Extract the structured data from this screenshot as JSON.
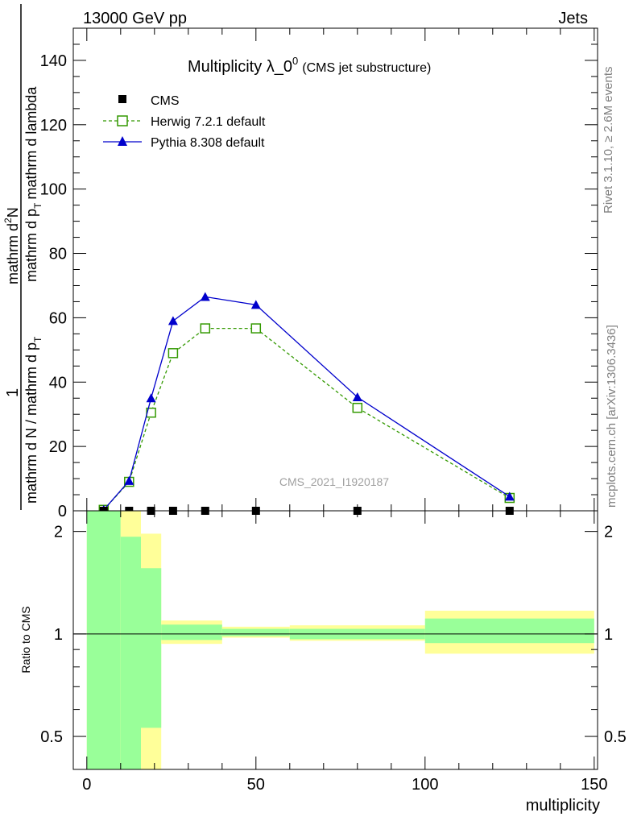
{
  "header": {
    "energy_label": "13000 GeV pp",
    "process_label": "Jets"
  },
  "side_labels": {
    "rivet": "Rivet 3.1.10, ≥ 2.6M events",
    "mcplots": "mcplots.cern.ch [arXiv:1306.3436]"
  },
  "chart_data": [
    {
      "type": "line",
      "title_main": "Multiplicity λ_0",
      "title_sup": "0",
      "title_sub": "(CMS jet substructure)",
      "watermark": "CMS_2021_I1920187",
      "ylabel_parts": {
        "numerator": "mathrm d",
        "numerator_sup": "2",
        "numerator_n": "N",
        "frac_one": "1",
        "denominator": "mathrm d N / mathrm d p",
        "denominator_sub": "T",
        "denominator_tail": "mathrm d p",
        "denominator_tail_sub": "T",
        "denominator_end": "mathrm d lambda"
      },
      "ylim": [
        0,
        150
      ],
      "yticks": [
        0,
        20,
        40,
        60,
        80,
        100,
        120,
        140
      ],
      "xlim": [
        -4,
        151
      ],
      "legend_position": "top-left",
      "series": [
        {
          "name": "CMS",
          "color": "#000000",
          "marker": "filled-square",
          "x": [
            5,
            12.5,
            19,
            25.5,
            35,
            50,
            80,
            125
          ],
          "y": [
            0,
            0,
            0,
            0,
            0,
            0,
            0,
            0
          ]
        },
        {
          "name": "Herwig 7.2.1 default",
          "color": "#339900",
          "marker": "open-square",
          "line": "dashed",
          "x": [
            5,
            12.5,
            19,
            25.5,
            35,
            50,
            80,
            125
          ],
          "y": [
            0.3,
            9,
            30.5,
            49,
            56.7,
            56.7,
            32,
            4
          ]
        },
        {
          "name": "Pythia 8.308 default",
          "color": "#0000cc",
          "marker": "filled-triangle",
          "line": "solid",
          "x": [
            5,
            12.5,
            19,
            25.5,
            35,
            50,
            80,
            125
          ],
          "y": [
            0.3,
            9.3,
            35,
            59,
            66.5,
            64,
            35.3,
            4.4
          ]
        }
      ]
    },
    {
      "type": "area",
      "ylabel": "Ratio to CMS",
      "xlabel": "multiplicity",
      "scale": "log",
      "ylim": [
        0.4,
        2.3
      ],
      "yticks": [
        0.5,
        1,
        2
      ],
      "ytick_labels": [
        "0.5",
        "1",
        "2"
      ],
      "xlim": [
        -4,
        151
      ],
      "xticks": [
        0,
        50,
        100,
        150
      ],
      "xtick_labels": [
        "0",
        "50",
        "100",
        "150"
      ],
      "reference": 1,
      "bands": {
        "inner_color": "#99ff99",
        "outer_color": "#ffff99",
        "bins": [
          {
            "x0": 0,
            "x1": 10,
            "inner": [
              0.4,
              2.3
            ],
            "outer": [
              0.4,
              2.3
            ]
          },
          {
            "x0": 10,
            "x1": 16,
            "inner": [
              0.4,
              1.93
            ],
            "outer": [
              0.4,
              2.3
            ]
          },
          {
            "x0": 16,
            "x1": 22,
            "inner": [
              0.53,
              1.56
            ],
            "outer": [
              0.4,
              1.97
            ]
          },
          {
            "x0": 22,
            "x1": 40,
            "inner": [
              0.96,
              1.065
            ],
            "outer": [
              0.935,
              1.095
            ]
          },
          {
            "x0": 40,
            "x1": 60,
            "inner": [
              0.985,
              1.035
            ],
            "outer": [
              0.975,
              1.05
            ]
          },
          {
            "x0": 60,
            "x1": 100,
            "inner": [
              0.965,
              1.035
            ],
            "outer": [
              0.955,
              1.06
            ]
          },
          {
            "x0": 100,
            "x1": 150,
            "inner": [
              0.94,
              1.11
            ],
            "outer": [
              0.875,
              1.17
            ]
          }
        ]
      }
    }
  ]
}
